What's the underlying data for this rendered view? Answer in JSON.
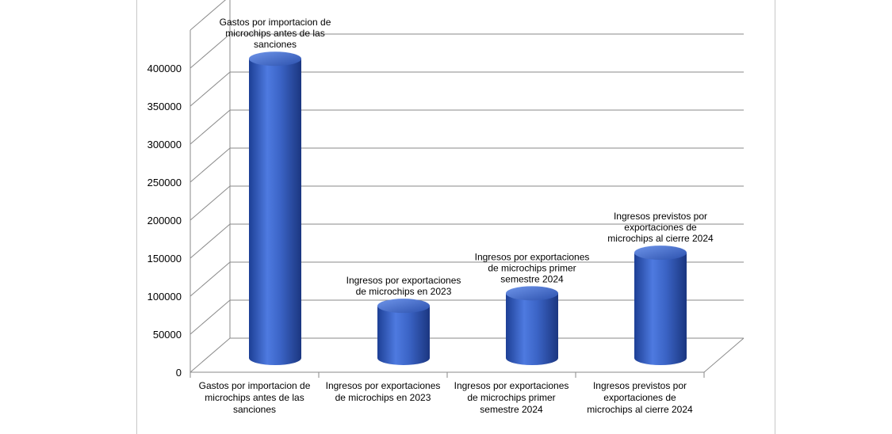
{
  "chart_data": {
    "type": "bar",
    "title": "",
    "xlabel": "",
    "ylabel": "",
    "ylim": [
      0,
      400000
    ],
    "grid": true,
    "legend": "none",
    "bar_color": "#3b64c6",
    "y_ticks": [
      "0",
      "50000",
      "100000",
      "150000",
      "200000",
      "250000",
      "300000",
      "350000",
      "400000"
    ],
    "y_tick_values": [
      0,
      50000,
      100000,
      150000,
      200000,
      250000,
      300000,
      350000,
      400000
    ],
    "categories": [
      "Gastos por importacion de microchips antes de las sanciones",
      "Ingresos por exportaciones de microchips en 2023",
      "Ingresos por exportaciones de microchips primer semestre  2024",
      "Ingresos previstos por exportaciones   de microchips al cierre 2024"
    ],
    "category_lines": [
      [
        "Gastos por importacion de",
        "microchips antes de las",
        "sanciones"
      ],
      [
        "Ingresos por exportaciones",
        "de microchips en 2023"
      ],
      [
        "Ingresos por exportaciones",
        "de microchips primer",
        "semestre  2024"
      ],
      [
        "Ingresos previstos por",
        "exportaciones   de",
        "microchips al cierre 2024"
      ]
    ],
    "values": [
      410000,
      75000,
      92000,
      147000
    ]
  }
}
